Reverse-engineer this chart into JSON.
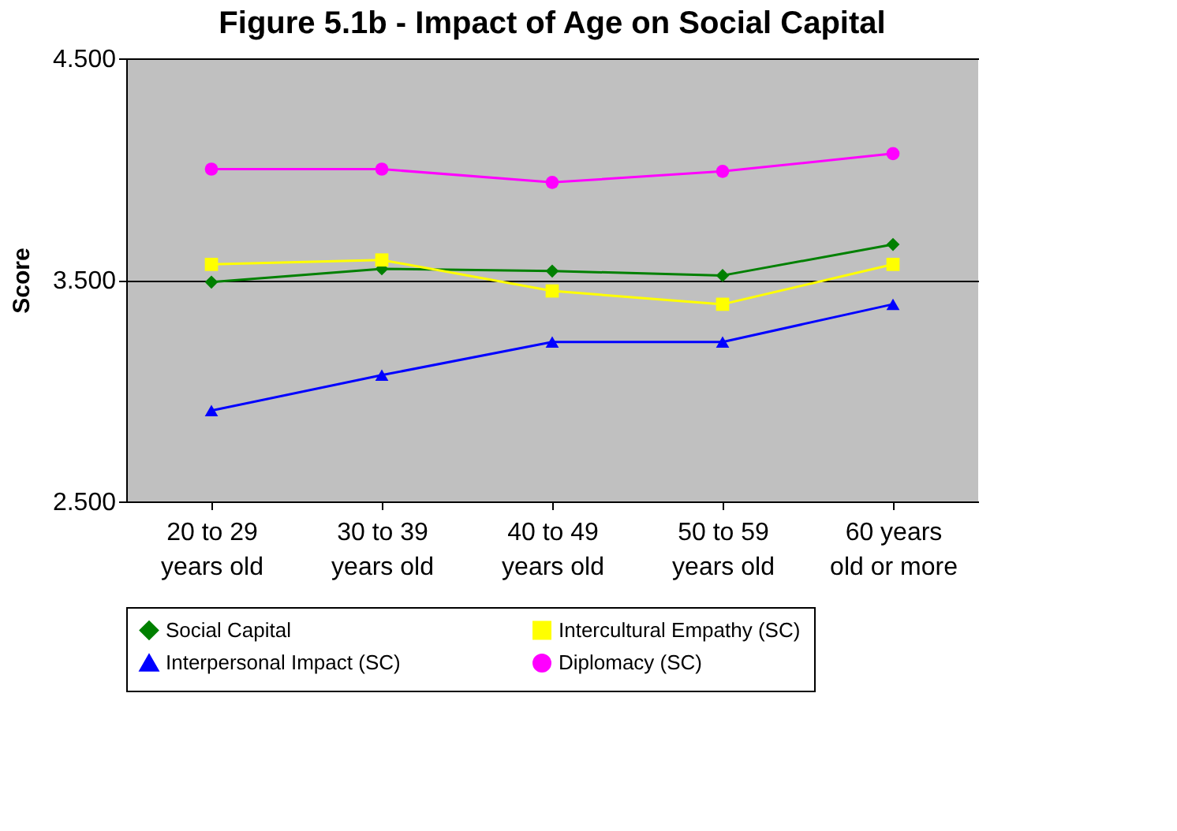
{
  "chart_data": {
    "type": "line",
    "title": "Figure 5.1b - Impact of Age on Social Capital",
    "ylabel": "Score",
    "categories": [
      "20 to 29\nyears old",
      "30 to 39\nyears old",
      "40 to 49\nyears old",
      "50 to 59\nyears old",
      "60 years\nold or more"
    ],
    "series": [
      {
        "name": "Social Capital",
        "color": "#008000",
        "marker": "diamond",
        "values": [
          3.49,
          3.55,
          3.54,
          3.52,
          3.66
        ]
      },
      {
        "name": "Intercultural Empathy (SC)",
        "color": "#ffff00",
        "marker": "square",
        "values": [
          3.57,
          3.59,
          3.45,
          3.39,
          3.57
        ]
      },
      {
        "name": "Interpersonal Impact (SC)",
        "color": "#0000ff",
        "marker": "triangle",
        "values": [
          2.91,
          3.07,
          3.22,
          3.22,
          3.39
        ]
      },
      {
        "name": "Diplomacy (SC)",
        "color": "#ff00ff",
        "marker": "circle",
        "values": [
          4.0,
          4.0,
          3.94,
          3.99,
          4.07
        ]
      }
    ],
    "ylim": [
      2.5,
      4.5
    ],
    "yticks": [
      {
        "value": 2.5,
        "label": "2.500"
      },
      {
        "value": 3.5,
        "label": "3.500"
      },
      {
        "value": 4.5,
        "label": "4.500"
      }
    ],
    "grid": "y",
    "legend": "bottom",
    "line_style": "solid"
  }
}
